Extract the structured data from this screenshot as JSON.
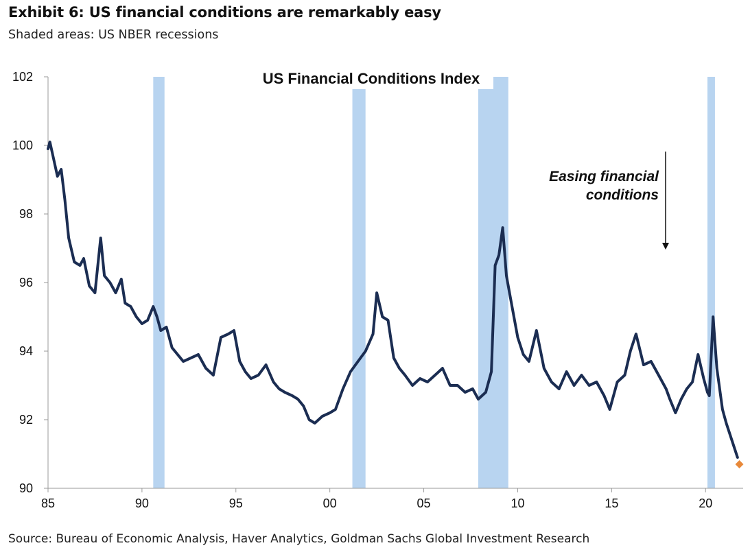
{
  "exhibit": {
    "title": "Exhibit 6: US financial conditions are remarkably easy",
    "subtitle": "Shaded areas: US NBER recessions",
    "source": "Source: Bureau of Economic Analysis, Haver Analytics, Goldman Sachs Global Investment Research"
  },
  "chart_data": {
    "type": "line",
    "title": "US Financial Conditions Index",
    "annotation": "Easing financial\nconditions",
    "annotation_arrow": "down",
    "xlabel": "",
    "ylabel": "",
    "xlim": [
      1985.0,
      2022.0
    ],
    "ylim": [
      90,
      102
    ],
    "x_ticks": [
      1985,
      1990,
      1995,
      2000,
      2005,
      2010,
      2015,
      2020
    ],
    "x_tick_labels": [
      "85",
      "90",
      "95",
      "00",
      "05",
      "10",
      "15",
      "20"
    ],
    "y_ticks": [
      90,
      92,
      94,
      96,
      98,
      100,
      102
    ],
    "y_tick_labels": [
      "90",
      "92",
      "94",
      "96",
      "98",
      "100",
      "102"
    ],
    "grid": false,
    "colors": {
      "line": "#1b2d52",
      "recession": "#b8d4f0",
      "last_point": "#e8893a",
      "axis": "#999999"
    },
    "recessions": [
      {
        "start": 1990.6,
        "end": 1991.2
      },
      {
        "start": 2001.2,
        "end": 2001.9
      },
      {
        "start": 2007.9,
        "end": 2009.5
      },
      {
        "start": 2020.1,
        "end": 2020.5
      }
    ],
    "series": [
      {
        "x": [
          1985.0,
          1985.1,
          1985.3,
          1985.5,
          1985.7,
          1985.9,
          1986.1,
          1986.4,
          1986.7,
          1986.9,
          1987.2,
          1987.5,
          1987.8,
          1988.0,
          1988.3,
          1988.6,
          1988.9,
          1989.1,
          1989.4,
          1989.7,
          1990.0,
          1990.3,
          1990.6,
          1990.8,
          1991.0,
          1991.3,
          1991.6,
          1991.9,
          1992.2,
          1992.6,
          1993.0,
          1993.4,
          1993.8,
          1994.2,
          1994.6,
          1994.9,
          1995.2,
          1995.5,
          1995.8,
          1996.2,
          1996.6,
          1997.0,
          1997.3,
          1997.6,
          1998.0,
          1998.3,
          1998.6,
          1998.9,
          1999.2,
          1999.6,
          2000.0,
          2000.3,
          2000.7,
          2001.1,
          2001.5,
          2001.9,
          2002.3,
          2002.5,
          2002.8,
          2003.1,
          2003.4,
          2003.7,
          2004.0,
          2004.4,
          2004.8,
          2005.2,
          2005.6,
          2006.0,
          2006.4,
          2006.8,
          2007.2,
          2007.6,
          2007.9,
          2008.3,
          2008.6,
          2008.8,
          2009.0,
          2009.2,
          2009.4,
          2009.7,
          2010.0,
          2010.3,
          2010.6,
          2011.0,
          2011.4,
          2011.8,
          2012.2,
          2012.6,
          2013.0,
          2013.4,
          2013.8,
          2014.2,
          2014.6,
          2014.9,
          2015.3,
          2015.7,
          2016.0,
          2016.3,
          2016.7,
          2017.1,
          2017.5,
          2017.9,
          2018.1,
          2018.4,
          2018.7,
          2019.0,
          2019.3,
          2019.6,
          2019.9,
          2020.1,
          2020.2,
          2020.4,
          2020.6,
          2020.9,
          2021.1,
          2021.4,
          2021.7
        ],
        "values": [
          99.9,
          100.1,
          99.6,
          99.1,
          99.3,
          98.4,
          97.3,
          96.6,
          96.5,
          96.7,
          95.9,
          95.7,
          97.3,
          96.2,
          96.0,
          95.7,
          96.1,
          95.4,
          95.3,
          95.0,
          94.8,
          94.9,
          95.3,
          95.0,
          94.6,
          94.7,
          94.1,
          93.9,
          93.7,
          93.8,
          93.9,
          93.5,
          93.3,
          94.4,
          94.5,
          94.6,
          93.7,
          93.4,
          93.2,
          93.3,
          93.6,
          93.1,
          92.9,
          92.8,
          92.7,
          92.6,
          92.4,
          92.0,
          91.9,
          92.1,
          92.2,
          92.3,
          92.9,
          93.4,
          93.7,
          94.0,
          94.5,
          95.7,
          95.0,
          94.9,
          93.8,
          93.5,
          93.3,
          93.0,
          93.2,
          93.1,
          93.3,
          93.5,
          93.0,
          93.0,
          92.8,
          92.9,
          92.6,
          92.8,
          93.4,
          96.5,
          96.8,
          97.6,
          96.2,
          95.3,
          94.4,
          93.9,
          93.7,
          94.6,
          93.5,
          93.1,
          92.9,
          93.4,
          93.0,
          93.3,
          93.0,
          93.1,
          92.7,
          92.3,
          93.1,
          93.3,
          94.0,
          94.5,
          93.6,
          93.7,
          93.3,
          92.9,
          92.6,
          92.2,
          92.6,
          92.9,
          93.1,
          93.9,
          93.2,
          92.8,
          92.7,
          95.0,
          93.5,
          92.3,
          91.9,
          91.4,
          90.9
        ]
      }
    ],
    "last_point": {
      "x": 2021.8,
      "value": 90.7
    }
  }
}
